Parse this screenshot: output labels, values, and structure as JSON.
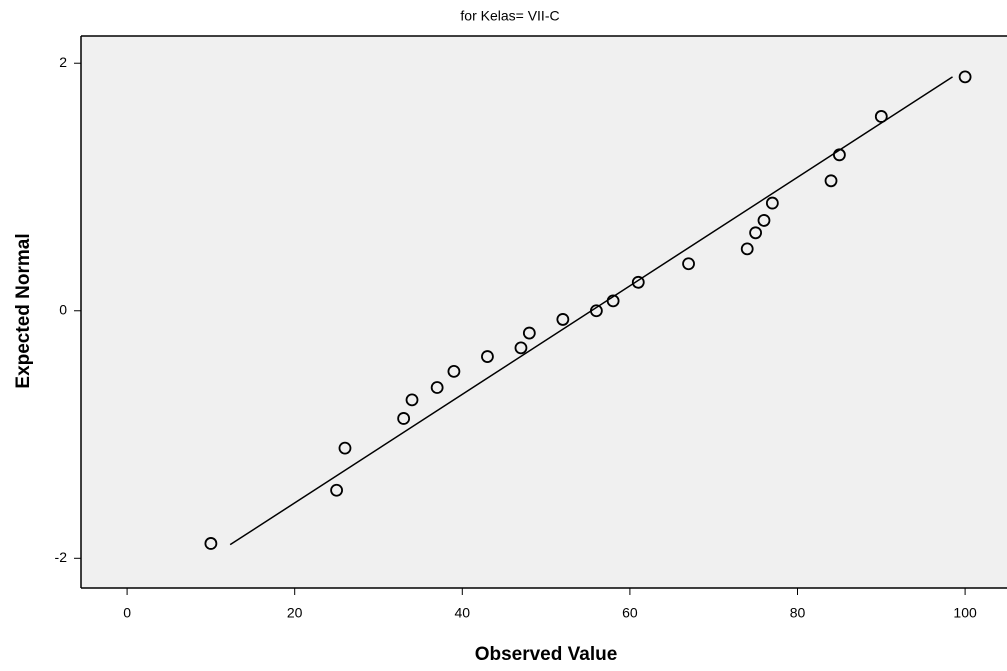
{
  "chart_data": {
    "type": "scatter",
    "title": "for Kelas= VII-C",
    "x_label": "Observed Value",
    "y_label": "Expected Normal",
    "x": [
      10,
      25,
      26,
      33,
      34,
      37,
      39,
      43,
      47,
      48,
      52,
      56,
      58,
      61,
      67,
      74,
      75,
      76,
      77,
      84,
      85,
      90,
      100
    ],
    "values": [
      -1.88,
      -1.45,
      -1.11,
      -0.87,
      -0.72,
      -0.62,
      -0.49,
      -0.37,
      -0.3,
      -0.18,
      -0.07,
      0,
      0.08,
      0.23,
      0.38,
      0.5,
      0.63,
      0.73,
      0.87,
      1.05,
      1.26,
      1.57,
      1.89
    ],
    "reference_line": {
      "x": [
        12.3,
        98.5
      ],
      "y": [
        -1.89,
        1.89
      ]
    },
    "color": "#000000",
    "background": "#f0f0f0",
    "xlim": [
      -5.5,
      105
    ],
    "ylim": [
      -2.24,
      2.22
    ],
    "xticks": [
      0,
      20,
      40,
      60,
      80,
      100
    ],
    "yticks": [
      -2,
      0,
      2
    ]
  }
}
